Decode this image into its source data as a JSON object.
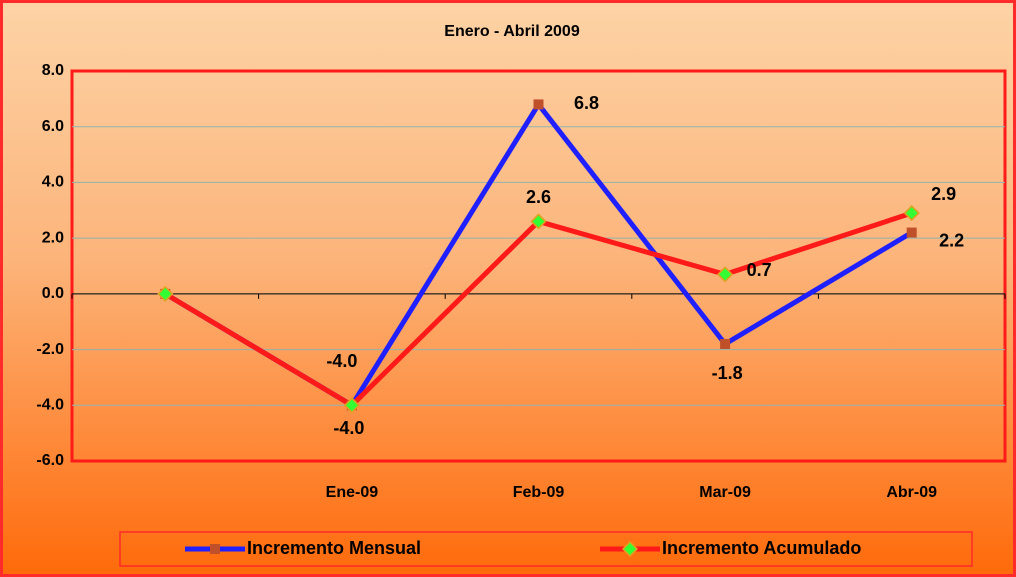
{
  "chart_data": {
    "type": "line",
    "title": "Enero - Abril 2009",
    "categories": [
      null,
      "Ene-09",
      "Feb-09",
      "Mar-09",
      "Abr-09"
    ],
    "series": [
      {
        "name": "Incremento Mensual",
        "color": "#1f1fff",
        "marker_color": "#c0502a",
        "values": [
          0,
          -4.0,
          6.8,
          -1.8,
          2.2
        ],
        "value_labels": [
          null,
          "-4.0",
          "6.8",
          "-1.8",
          "2.2"
        ]
      },
      {
        "name": "Incremento Acumulado",
        "color": "#ff1a1a",
        "marker_color": "#33ff33",
        "values": [
          0,
          -4.0,
          2.6,
          0.7,
          2.9
        ],
        "value_labels": [
          null,
          "-4.0",
          "2.6",
          "0.7",
          "2.9"
        ]
      }
    ],
    "ylim": [
      -6,
      8
    ],
    "yticks": [
      {
        "value": -6,
        "label": "-6.0"
      },
      {
        "value": -4,
        "label": "-4.0"
      },
      {
        "value": -2,
        "label": "-2.0"
      },
      {
        "value": 0,
        "label": "0.0"
      },
      {
        "value": 2,
        "label": "2.0"
      },
      {
        "value": 4,
        "label": "4.0"
      },
      {
        "value": 6,
        "label": "6.0"
      },
      {
        "value": 8,
        "label": "8.0"
      }
    ],
    "grid": true
  }
}
